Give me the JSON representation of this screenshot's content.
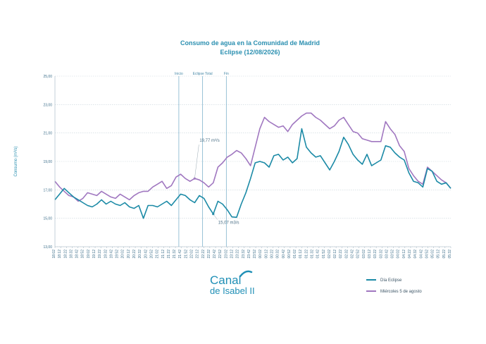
{
  "chart_data": {
    "type": "line",
    "title": "Consumo de agua en la Comunidad de Madrid",
    "subtitle": "Eclipse (12/08/2026)",
    "ylabel": "Consumo (m³/s)",
    "ylim": [
      13,
      25
    ],
    "yticks": [
      "25,00",
      "23,00",
      "21,00",
      "19,00",
      "17,00",
      "15,00",
      "13,00"
    ],
    "xticks": [
      "18:02",
      "18:12",
      "18:22",
      "18:32",
      "18:42",
      "18:52",
      "19:02",
      "19:12",
      "19:22",
      "19:32",
      "19:42",
      "19:52",
      "20:02",
      "20:12",
      "20:22",
      "20:32",
      "20:42",
      "20:52",
      "21:02",
      "21:12",
      "21:22",
      "21:32",
      "21:42",
      "21:52",
      "22:02",
      "22:12",
      "22:22",
      "22:32",
      "22:42",
      "22:52",
      "23:02",
      "23:12",
      "23:22",
      "23:32",
      "23:42",
      "23:52",
      "00:02",
      "00:12",
      "00:22",
      "00:32",
      "00:42",
      "00:52",
      "01:02",
      "01:12",
      "01:22",
      "01:32",
      "01:42",
      "01:52",
      "02:02",
      "02:12",
      "02:22",
      "02:32",
      "02:42",
      "02:52",
      "03:02",
      "03:12",
      "03:22",
      "03:32",
      "03:42",
      "03:52",
      "04:02",
      "04:12",
      "04:22",
      "04:32",
      "04:42",
      "04:52",
      "05:02",
      "05:12",
      "05:22",
      "05:32"
    ],
    "grid": true,
    "legend_position": "bottom-right",
    "events": [
      {
        "label": "Inicio",
        "x": 0.313
      },
      {
        "label": "Eclipse Total",
        "x": 0.373
      },
      {
        "label": "Fin",
        "x": 0.433
      }
    ],
    "annotations": [
      {
        "text": "19,77 m³/s",
        "series": 1,
        "point": 30
      },
      {
        "text": "15,07 m3/s",
        "series": 0,
        "point": 34
      }
    ],
    "series": [
      {
        "name": "Día Eclipse",
        "color": "#1b8aa6",
        "values": [
          16.3,
          16.7,
          17.1,
          16.8,
          16.5,
          16.3,
          16.1,
          15.9,
          15.8,
          16.0,
          16.3,
          16.0,
          16.2,
          16.0,
          15.9,
          16.1,
          15.8,
          15.7,
          15.9,
          15.0,
          15.9,
          15.9,
          15.8,
          16.0,
          16.2,
          15.9,
          16.3,
          16.7,
          16.6,
          16.3,
          16.1,
          16.6,
          16.4,
          15.8,
          15.3,
          16.2,
          16.0,
          15.6,
          15.1,
          15.07,
          16.0,
          16.8,
          17.8,
          18.9,
          19.0,
          18.9,
          18.6,
          19.4,
          19.5,
          19.1,
          19.3,
          18.9,
          19.2,
          21.3,
          20.0,
          19.6,
          19.3,
          19.4,
          18.9,
          18.4,
          19.0,
          19.7,
          20.7,
          20.2,
          19.5,
          19.1,
          18.8,
          19.5,
          18.7,
          18.9,
          19.1,
          20.1,
          20.0,
          19.6,
          19.3,
          19.1,
          18.2,
          17.6,
          17.5,
          17.2,
          18.5,
          18.3,
          17.6,
          17.4,
          17.5,
          17.1
        ]
      },
      {
        "name": "Miércoles 5 de agosto",
        "color": "#a077c0",
        "values": [
          17.6,
          17.2,
          16.9,
          16.6,
          16.5,
          16.2,
          16.4,
          16.8,
          16.7,
          16.6,
          16.9,
          16.7,
          16.5,
          16.4,
          16.7,
          16.5,
          16.3,
          16.6,
          16.8,
          16.9,
          16.9,
          17.2,
          17.4,
          17.6,
          17.1,
          17.3,
          17.9,
          18.1,
          17.8,
          17.6,
          17.8,
          17.7,
          17.5,
          17.2,
          17.5,
          18.6,
          18.9,
          19.3,
          19.5,
          19.77,
          19.6,
          19.2,
          18.7,
          20.0,
          21.3,
          22.1,
          21.8,
          21.6,
          21.4,
          21.5,
          21.1,
          21.6,
          21.9,
          22.2,
          22.4,
          22.4,
          22.1,
          21.9,
          21.6,
          21.3,
          21.5,
          21.9,
          22.1,
          21.6,
          21.1,
          21.0,
          20.6,
          20.5,
          20.4,
          20.4,
          20.4,
          21.8,
          21.3,
          20.9,
          20.1,
          19.7,
          18.5,
          18.0,
          17.6,
          17.4,
          18.6,
          18.3,
          18.0,
          17.7,
          17.5,
          17.1
        ]
      }
    ]
  },
  "brand": {
    "line1": "Canal",
    "line2": "de Isabel II",
    "color": "#1f8fb6"
  }
}
